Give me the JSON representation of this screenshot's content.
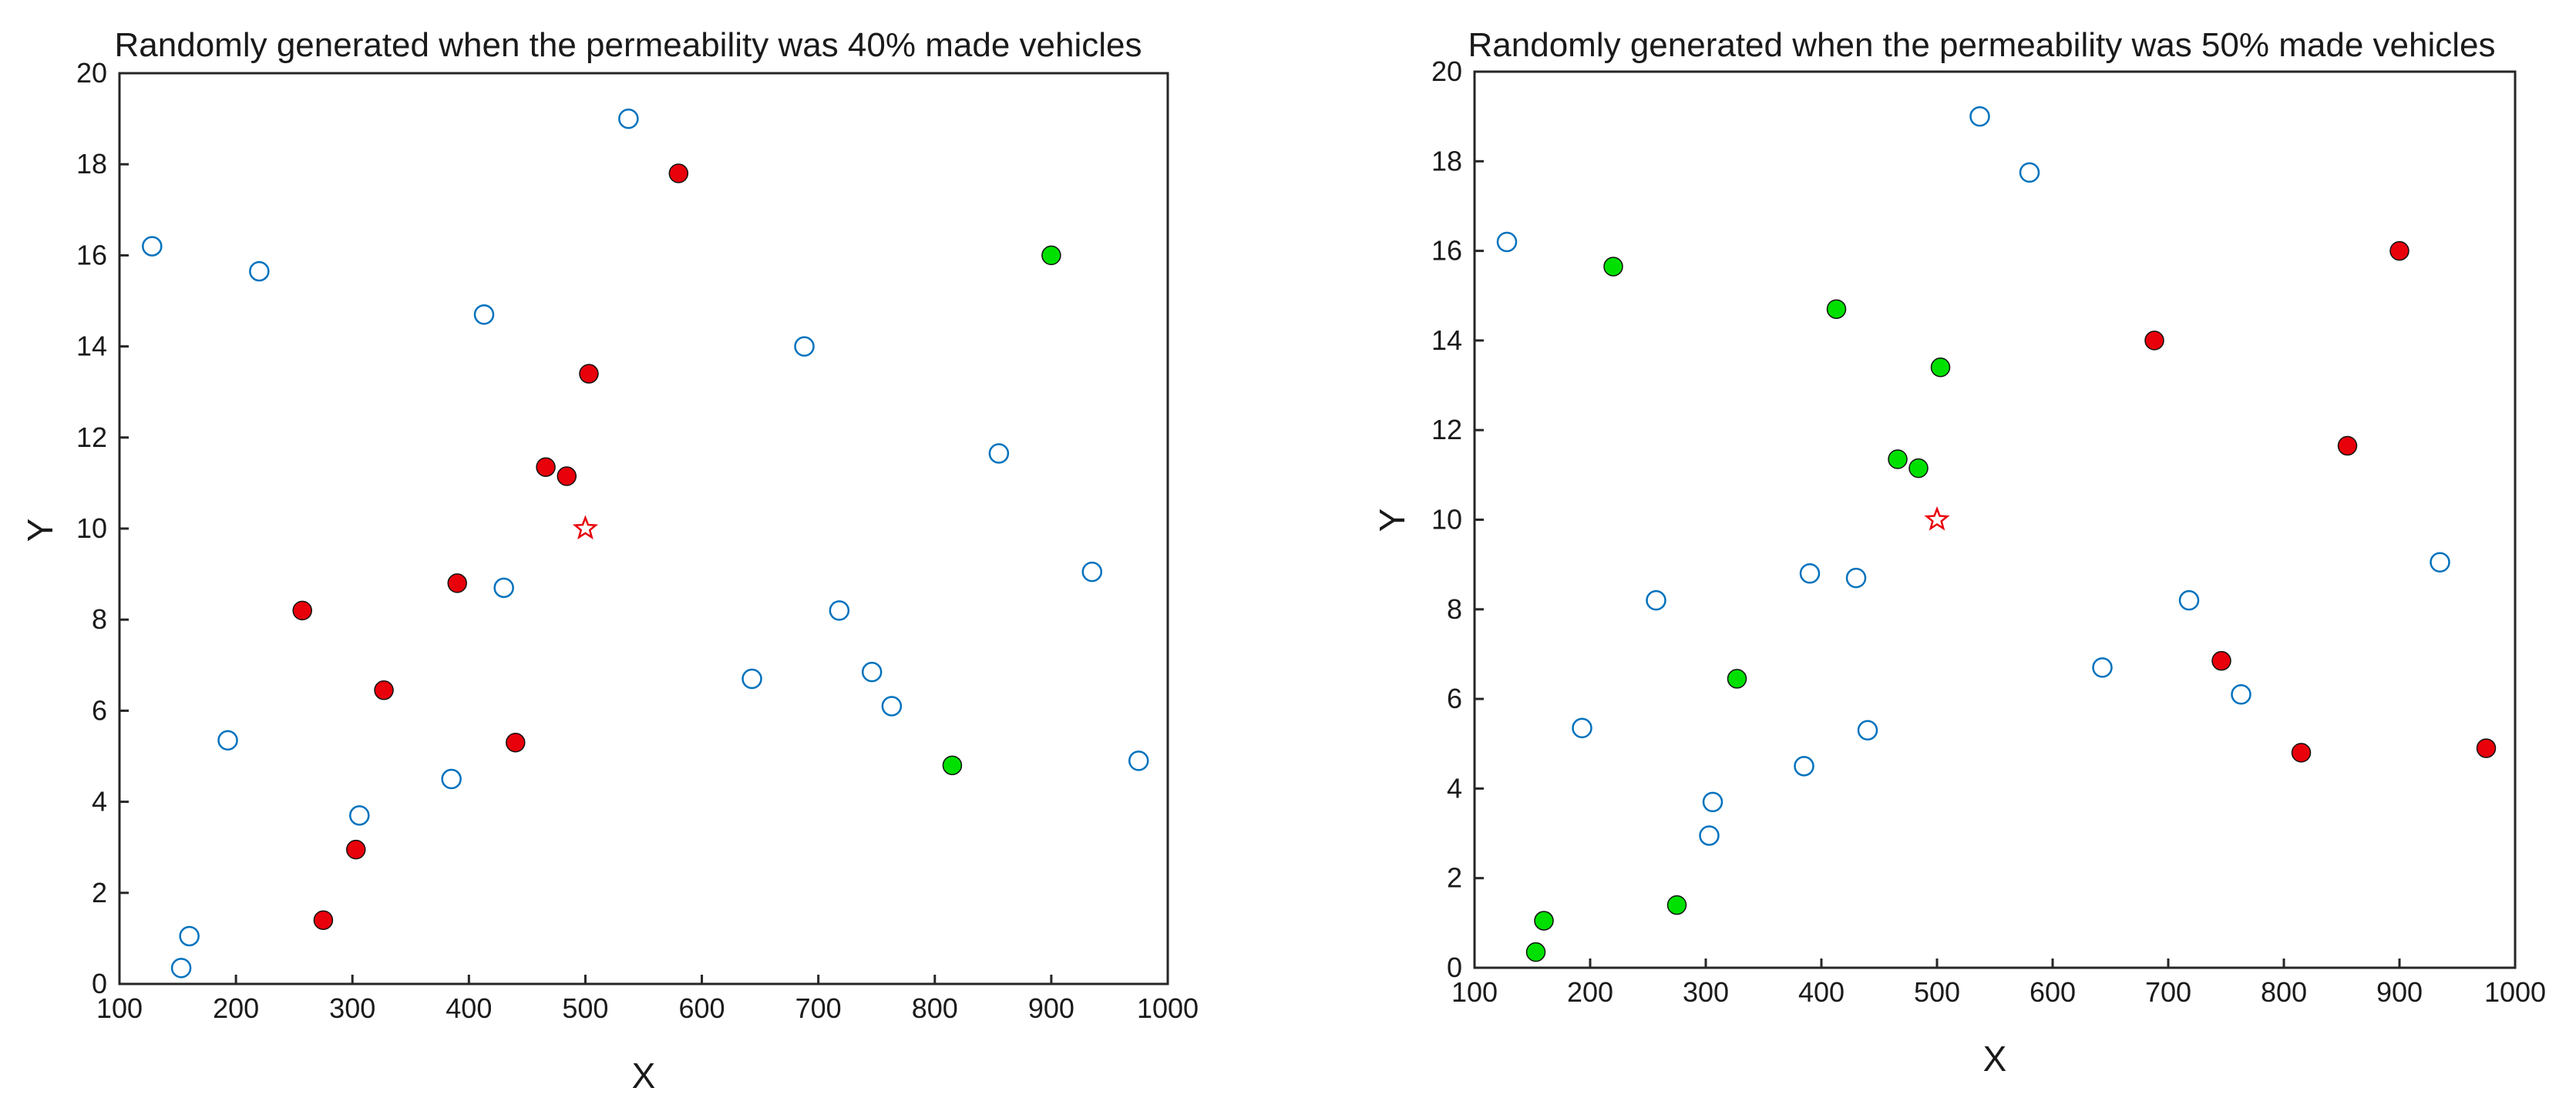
{
  "chart_data": [
    {
      "type": "scatter",
      "title": "Randomly generated when the permeability was 40% made vehicles",
      "xlabel": "X",
      "ylabel": "Y",
      "xlim": [
        100,
        1000
      ],
      "ylim": [
        0,
        20
      ],
      "xticks": [
        "100",
        "200",
        "300",
        "400",
        "500",
        "600",
        "700",
        "800",
        "900",
        "1000"
      ],
      "yticks": [
        "0",
        "2",
        "4",
        "6",
        "8",
        "10",
        "12",
        "14",
        "16",
        "18",
        "20"
      ],
      "grid": false,
      "colors": {
        "open": "#0072BD",
        "red": "#E8000B",
        "green": "#00E000",
        "star": "#E8000B"
      },
      "series": [
        {
          "name": "open circles",
          "style": "open",
          "points": [
            [
              128,
              16.2
            ],
            [
              220,
              15.65
            ],
            [
              537,
              19.0
            ],
            [
              413,
              14.7
            ],
            [
              688,
              14.0
            ],
            [
              855,
              11.65
            ],
            [
              935,
              9.05
            ],
            [
              430,
              8.7
            ],
            [
              718,
              8.2
            ],
            [
              193,
              5.35
            ],
            [
              643,
              6.7
            ],
            [
              746,
              6.85
            ],
            [
              763,
              6.1
            ],
            [
              975,
              4.9
            ],
            [
              306,
              3.7
            ],
            [
              385,
              4.5
            ],
            [
              160,
              1.05
            ],
            [
              153,
              0.35
            ]
          ]
        },
        {
          "name": "red filled",
          "style": "red",
          "points": [
            [
              580,
              17.8
            ],
            [
              503,
              13.4
            ],
            [
              466,
              11.35
            ],
            [
              484,
              11.15
            ],
            [
              390,
              8.8
            ],
            [
              257,
              8.2
            ],
            [
              327,
              6.45
            ],
            [
              440,
              5.3
            ],
            [
              303,
              2.95
            ],
            [
              275,
              1.4
            ]
          ]
        },
        {
          "name": "green filled",
          "style": "green",
          "points": [
            [
              900,
              16.0
            ],
            [
              815,
              4.8
            ]
          ]
        },
        {
          "name": "star",
          "style": "star",
          "points": [
            [
              500,
              10.0
            ]
          ]
        }
      ]
    },
    {
      "type": "scatter",
      "title": "Randomly generated when the permeability was 50% made vehicles",
      "xlabel": "X",
      "ylabel": "Y",
      "xlim": [
        100,
        1000
      ],
      "ylim": [
        0,
        20
      ],
      "xticks": [
        "100",
        "200",
        "300",
        "400",
        "500",
        "600",
        "700",
        "800",
        "900",
        "1000"
      ],
      "yticks": [
        "0",
        "2",
        "4",
        "6",
        "8",
        "10",
        "12",
        "14",
        "16",
        "18",
        "20"
      ],
      "grid": false,
      "colors": {
        "open": "#0072BD",
        "red": "#E8000B",
        "green": "#00E000",
        "star": "#E8000B"
      },
      "series": [
        {
          "name": "open circles",
          "style": "open",
          "points": [
            [
              128,
              16.2
            ],
            [
              537,
              19.0
            ],
            [
              580,
              17.75
            ],
            [
              193,
              5.35
            ],
            [
              257,
              8.2
            ],
            [
              390,
              8.8
            ],
            [
              430,
              8.7
            ],
            [
              440,
              5.3
            ],
            [
              385,
              4.5
            ],
            [
              306,
              3.7
            ],
            [
              303,
              2.95
            ],
            [
              643,
              6.7
            ],
            [
              718,
              8.2
            ],
            [
              763,
              6.1
            ],
            [
              935,
              9.05
            ]
          ]
        },
        {
          "name": "green filled",
          "style": "green",
          "points": [
            [
              220,
              15.65
            ],
            [
              413,
              14.7
            ],
            [
              503,
              13.4
            ],
            [
              466,
              11.35
            ],
            [
              484,
              11.15
            ],
            [
              327,
              6.45
            ],
            [
              275,
              1.4
            ],
            [
              160,
              1.05
            ],
            [
              153,
              0.35
            ]
          ]
        },
        {
          "name": "red filled",
          "style": "red",
          "points": [
            [
              688,
              14.0
            ],
            [
              900,
              16.0
            ],
            [
              855,
              11.65
            ],
            [
              746,
              6.85
            ],
            [
              815,
              4.8
            ],
            [
              975,
              4.9
            ]
          ]
        },
        {
          "name": "star",
          "style": "star",
          "points": [
            [
              500,
              10.0
            ]
          ]
        }
      ]
    }
  ]
}
